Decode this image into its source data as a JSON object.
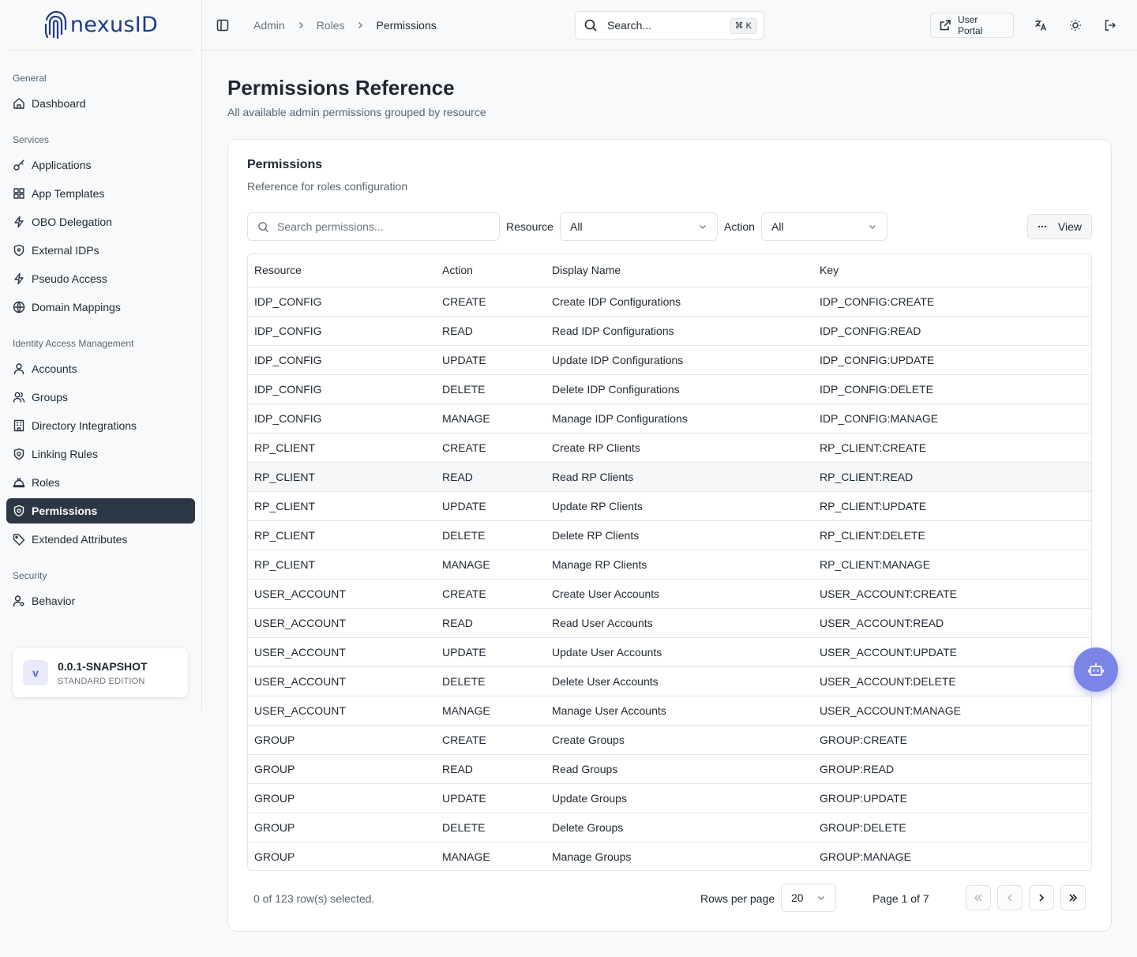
{
  "brand": {
    "name": "nexusID"
  },
  "sidebar": {
    "sections": [
      {
        "heading": "General",
        "items": [
          {
            "label": "Dashboard",
            "icon": "home-icon"
          }
        ]
      },
      {
        "heading": "Services",
        "items": [
          {
            "label": "Applications",
            "icon": "key-icon"
          },
          {
            "label": "App Templates",
            "icon": "blocks-icon"
          },
          {
            "label": "OBO Delegation",
            "icon": "zap-icon"
          },
          {
            "label": "External IDPs",
            "icon": "shield-icon"
          },
          {
            "label": "Pseudo Access",
            "icon": "zap-icon"
          },
          {
            "label": "Domain Mappings",
            "icon": "globe-icon"
          }
        ]
      },
      {
        "heading": "Identity Access Management",
        "items": [
          {
            "label": "Accounts",
            "icon": "user-icon"
          },
          {
            "label": "Groups",
            "icon": "users-icon"
          },
          {
            "label": "Directory Integrations",
            "icon": "building-icon"
          },
          {
            "label": "Linking Rules",
            "icon": "shield-settings-icon"
          },
          {
            "label": "Roles",
            "icon": "hard-hat-icon"
          },
          {
            "label": "Permissions",
            "icon": "shield-settings-icon",
            "active": true
          },
          {
            "label": "Extended Attributes",
            "icon": "tag-icon"
          }
        ]
      },
      {
        "heading": "Security",
        "items": [
          {
            "label": "Behavior",
            "icon": "user-cog-icon"
          }
        ]
      }
    ],
    "version": {
      "badge": "v",
      "title": "0.0.1-SNAPSHOT",
      "edition": "STANDARD EDITION"
    }
  },
  "topbar": {
    "breadcrumb": [
      "Admin",
      "Roles",
      "Permissions"
    ],
    "search_placeholder": "Search...",
    "search_shortcut": "⌘ K",
    "user_portal_label": "User Portal"
  },
  "page": {
    "title": "Permissions Reference",
    "subtitle": "All available admin permissions grouped by resource"
  },
  "card": {
    "title": "Permissions",
    "subtitle": "Reference for roles configuration",
    "search_placeholder": "Search permissions...",
    "resource_label": "Resource",
    "resource_value": "All",
    "action_label": "Action",
    "action_value": "All",
    "view_label": "View"
  },
  "table": {
    "columns": [
      "Resource",
      "Action",
      "Display Name",
      "Key"
    ],
    "rows": [
      [
        "IDP_CONFIG",
        "CREATE",
        "Create IDP Configurations",
        "IDP_CONFIG:CREATE"
      ],
      [
        "IDP_CONFIG",
        "READ",
        "Read IDP Configurations",
        "IDP_CONFIG:READ"
      ],
      [
        "IDP_CONFIG",
        "UPDATE",
        "Update IDP Configurations",
        "IDP_CONFIG:UPDATE"
      ],
      [
        "IDP_CONFIG",
        "DELETE",
        "Delete IDP Configurations",
        "IDP_CONFIG:DELETE"
      ],
      [
        "IDP_CONFIG",
        "MANAGE",
        "Manage IDP Configurations",
        "IDP_CONFIG:MANAGE"
      ],
      [
        "RP_CLIENT",
        "CREATE",
        "Create RP Clients",
        "RP_CLIENT:CREATE"
      ],
      [
        "RP_CLIENT",
        "READ",
        "Read RP Clients",
        "RP_CLIENT:READ"
      ],
      [
        "RP_CLIENT",
        "UPDATE",
        "Update RP Clients",
        "RP_CLIENT:UPDATE"
      ],
      [
        "RP_CLIENT",
        "DELETE",
        "Delete RP Clients",
        "RP_CLIENT:DELETE"
      ],
      [
        "RP_CLIENT",
        "MANAGE",
        "Manage RP Clients",
        "RP_CLIENT:MANAGE"
      ],
      [
        "USER_ACCOUNT",
        "CREATE",
        "Create User Accounts",
        "USER_ACCOUNT:CREATE"
      ],
      [
        "USER_ACCOUNT",
        "READ",
        "Read User Accounts",
        "USER_ACCOUNT:READ"
      ],
      [
        "USER_ACCOUNT",
        "UPDATE",
        "Update User Accounts",
        "USER_ACCOUNT:UPDATE"
      ],
      [
        "USER_ACCOUNT",
        "DELETE",
        "Delete User Accounts",
        "USER_ACCOUNT:DELETE"
      ],
      [
        "USER_ACCOUNT",
        "MANAGE",
        "Manage User Accounts",
        "USER_ACCOUNT:MANAGE"
      ],
      [
        "GROUP",
        "CREATE",
        "Create Groups",
        "GROUP:CREATE"
      ],
      [
        "GROUP",
        "READ",
        "Read Groups",
        "GROUP:READ"
      ],
      [
        "GROUP",
        "UPDATE",
        "Update Groups",
        "GROUP:UPDATE"
      ],
      [
        "GROUP",
        "DELETE",
        "Delete Groups",
        "GROUP:DELETE"
      ],
      [
        "GROUP",
        "MANAGE",
        "Manage Groups",
        "GROUP:MANAGE"
      ]
    ],
    "hover_row": 6
  },
  "footer": {
    "selection": "0 of 123 row(s) selected.",
    "rows_per_page_label": "Rows per page",
    "rows_per_page_value": "20",
    "page_info": "Page 1 of 7"
  },
  "colors": {
    "accent": "#2d3645",
    "brand": "#1e3a8a",
    "fab": "#7b85e8"
  }
}
